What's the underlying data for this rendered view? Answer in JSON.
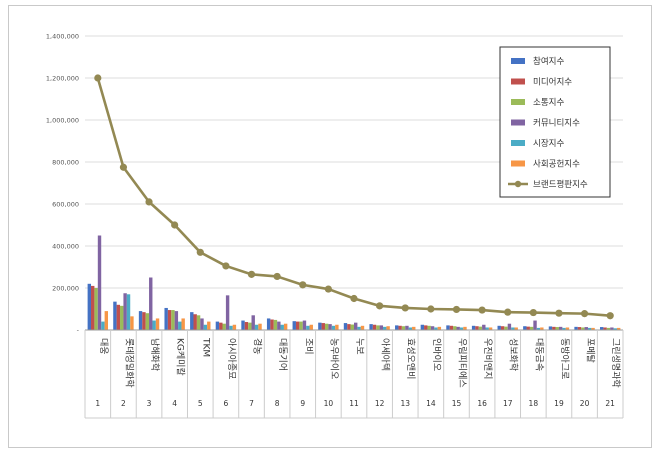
{
  "chart_data": {
    "type": "bar",
    "title": "",
    "xlabel": "",
    "ylabel": "",
    "ylim": [
      0,
      1400000
    ],
    "yticks": [
      "-",
      "200,000",
      "400,000",
      "600,000",
      "800,000",
      "1,000,000",
      "1,200,000",
      "1,400,000"
    ],
    "ytick_values": [
      0,
      200000,
      400000,
      600000,
      800000,
      1000000,
      1200000,
      1400000
    ],
    "grid": true,
    "legend_position": "top-right",
    "categories": [
      "대웅",
      "롯데정밀화학",
      "남해화학",
      "KG케미칼",
      "TKM",
      "아시아종묘",
      "경농",
      "대동기어",
      "조비",
      "농우바이오",
      "누보",
      "아세아텍",
      "효성오앤비",
      "인바이오",
      "우림피티에스",
      "우진비앤지",
      "성보화학",
      "대동금속",
      "동방아그로",
      "포메탈",
      "그린생명과학"
    ],
    "ranks": [
      "1",
      "2",
      "3",
      "4",
      "5",
      "6",
      "7",
      "8",
      "9",
      "10",
      "11",
      "12",
      "13",
      "14",
      "15",
      "16",
      "17",
      "18",
      "19",
      "20",
      "21"
    ],
    "series": [
      {
        "name": "참여지수",
        "color": "#4472c4",
        "kind": "bar",
        "values": [
          220000,
          135000,
          90000,
          105000,
          85000,
          40000,
          45000,
          55000,
          42000,
          35000,
          33000,
          28000,
          22000,
          25000,
          22000,
          20000,
          20000,
          18000,
          17000,
          15000,
          14000
        ]
      },
      {
        "name": "미디어지수",
        "color": "#c0504d",
        "kind": "bar",
        "values": [
          210000,
          120000,
          85000,
          95000,
          75000,
          35000,
          38000,
          50000,
          40000,
          33000,
          28000,
          25000,
          20000,
          22000,
          20000,
          18000,
          18000,
          16000,
          15000,
          14000,
          12000
        ]
      },
      {
        "name": "소통지수",
        "color": "#9bbb59",
        "kind": "bar",
        "values": [
          200000,
          115000,
          80000,
          95000,
          70000,
          30000,
          35000,
          48000,
          40000,
          30000,
          26000,
          22000,
          18000,
          20000,
          18000,
          16000,
          16000,
          15000,
          14000,
          12000,
          10000
        ]
      },
      {
        "name": "커뮤니티지수",
        "color": "#8064a2",
        "kind": "bar",
        "values": [
          450000,
          175000,
          250000,
          90000,
          55000,
          165000,
          70000,
          40000,
          45000,
          28000,
          35000,
          22000,
          20000,
          18000,
          15000,
          25000,
          30000,
          45000,
          15000,
          14000,
          12000
        ]
      },
      {
        "name": "시장지수",
        "color": "#4bacc6",
        "kind": "bar",
        "values": [
          40000,
          170000,
          45000,
          40000,
          25000,
          20000,
          25000,
          25000,
          20000,
          20000,
          15000,
          15000,
          12000,
          12000,
          12000,
          12000,
          12000,
          10000,
          10000,
          10000,
          8000
        ]
      },
      {
        "name": "사회공헌지수",
        "color": "#f79646",
        "kind": "bar",
        "values": [
          90000,
          65000,
          55000,
          55000,
          40000,
          25000,
          30000,
          30000,
          25000,
          25000,
          20000,
          18000,
          15000,
          15000,
          15000,
          12000,
          12000,
          12000,
          12000,
          10000,
          10000
        ]
      },
      {
        "name": "브랜드평판지수",
        "color": "#938953",
        "kind": "line",
        "values": [
          1200000,
          775000,
          610000,
          500000,
          370000,
          305000,
          265000,
          255000,
          215000,
          195000,
          150000,
          115000,
          105000,
          100000,
          98000,
          95000,
          85000,
          83000,
          80000,
          78000,
          68000
        ]
      }
    ]
  }
}
